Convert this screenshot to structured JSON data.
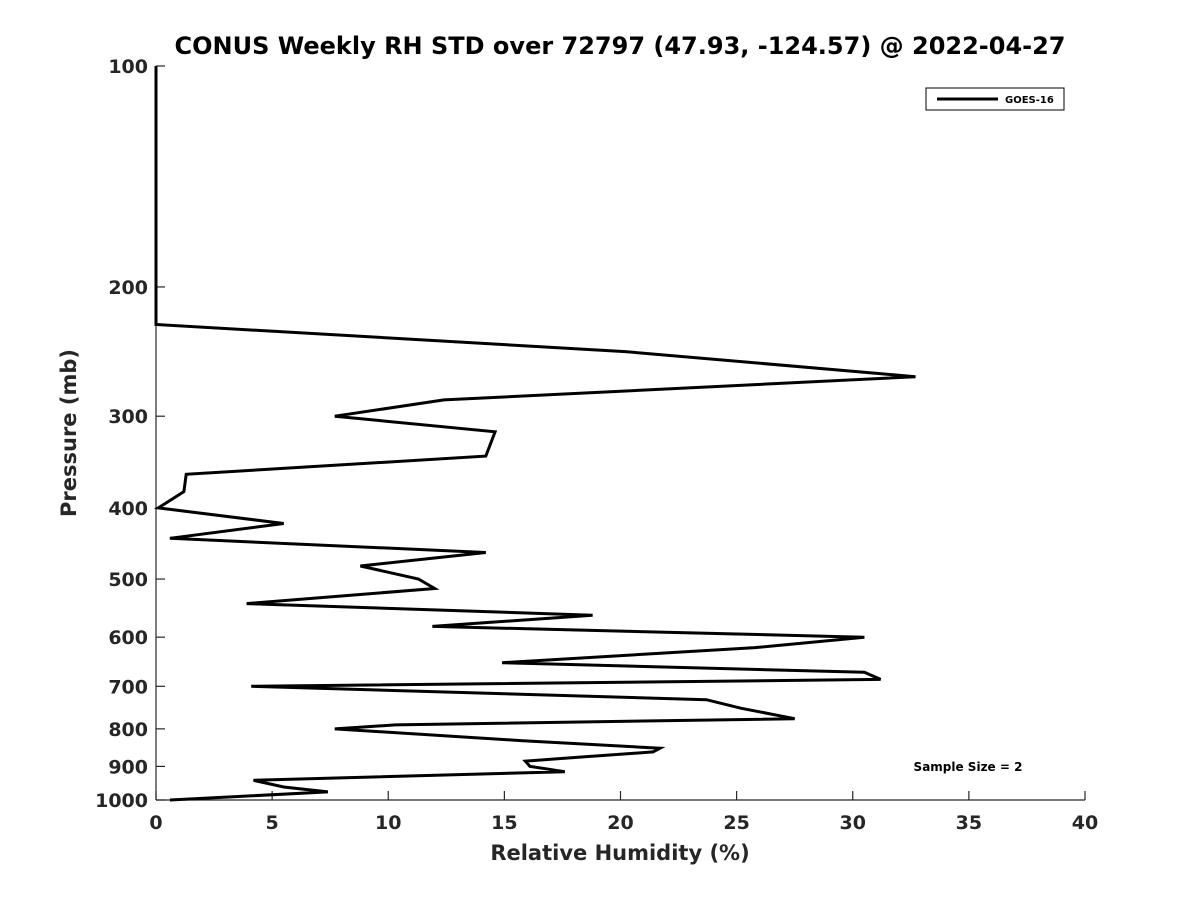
{
  "chart_data": {
    "type": "line",
    "title": "CONUS Weekly RH STD over 72797 (47.93, -124.57) @ 2022-04-27",
    "xlabel": "Relative Humidity (%)",
    "ylabel": "Pressure (mb)",
    "xlim": [
      0,
      40
    ],
    "ylim": [
      100,
      1000
    ],
    "yscale": "log",
    "yreversed": true,
    "xticks": [
      0,
      5,
      10,
      15,
      20,
      25,
      30,
      35,
      40
    ],
    "yticks": [
      100,
      200,
      300,
      400,
      500,
      600,
      700,
      800,
      900,
      1000
    ],
    "grid": false,
    "legend_position": "top-right",
    "annotation": "Sample Size = 2",
    "series": [
      {
        "name": "GOES-16",
        "color": "#000000",
        "x": [
          0,
          0,
          0,
          0,
          20.2,
          32.7,
          12.4,
          7.7,
          14.6,
          14.2,
          1.3,
          1.2,
          0.1,
          5.5,
          0.6,
          14.2,
          8.8,
          11.3,
          12.0,
          3.9,
          18.8,
          11.9,
          30.5,
          25.8,
          14.9,
          30.5,
          31.2,
          4.1,
          23.7,
          25.2,
          27.5,
          10.3,
          7.7,
          15.7,
          21.7,
          21.4,
          18.1,
          15.9,
          16.1,
          17.6,
          4.2,
          5.5,
          7.4,
          0.6
        ],
        "y": [
          100,
          150,
          200,
          225,
          245,
          265,
          285,
          300,
          315,
          340,
          360,
          380,
          400,
          420,
          440,
          460,
          480,
          500,
          515,
          540,
          560,
          580,
          600,
          620,
          650,
          670,
          685,
          700,
          730,
          750,
          775,
          790,
          800,
          830,
          850,
          860,
          875,
          885,
          900,
          915,
          940,
          960,
          975,
          1000
        ]
      }
    ]
  }
}
